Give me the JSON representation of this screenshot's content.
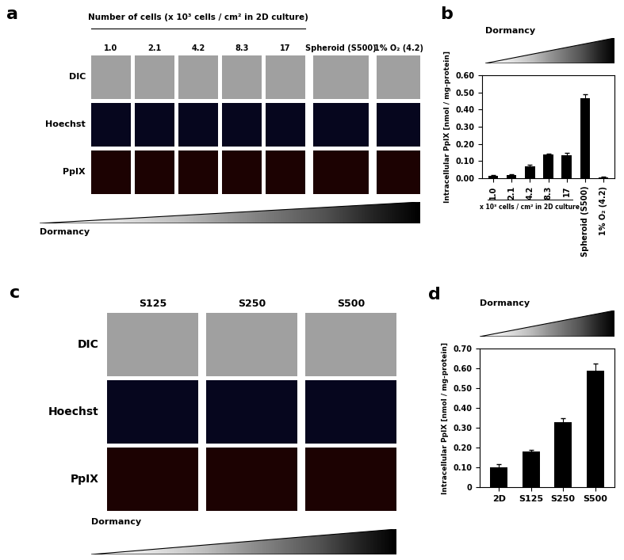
{
  "panels": [
    {
      "label": "a",
      "type": "image_grid",
      "header": "Number of cells (x 10³ cells / cm² in 2D culture)",
      "columns": [
        "1.0",
        "2.1",
        "4.2",
        "8.3",
        "17",
        "Spheroid (S500)",
        "1% O₂ (4.2)"
      ],
      "rows": [
        "DIC",
        "Hoechst",
        "PpIX"
      ],
      "gradient_label": "Dormancy"
    },
    {
      "label": "c",
      "type": "image_grid",
      "columns": [
        "S125",
        "S250",
        "S500"
      ],
      "rows": [
        "DIC",
        "Hoechst",
        "PpIX"
      ],
      "gradient_label": "Dormancy"
    }
  ],
  "chart_data": [
    {
      "type": "bar",
      "annotations": [
        "b",
        "Dormancy"
      ],
      "subtitle": "x 10³ cells / cm² in 2D culture",
      "y_label": "Intracellular PpIX [nmol / mg-protein]",
      "categories": [
        "1.0",
        "2.1",
        "4.2",
        "8.3",
        "17",
        "Spheroid (S500)",
        "1% O₂ (4.2)"
      ],
      "values": [
        0.015,
        0.02,
        0.07,
        0.14,
        0.135,
        0.465,
        0.005
      ],
      "errors": [
        0.005,
        0.005,
        0.008,
        0.005,
        0.015,
        0.025,
        0.002
      ],
      "color": "#000000",
      "ylim": [
        0,
        0.6
      ],
      "yticks": [
        {
          "value": 0,
          "label": "0.00"
        },
        {
          "value": 0.1,
          "label": "0.10"
        },
        {
          "value": 0.2,
          "label": "0.20"
        },
        {
          "value": 0.3,
          "label": "0.30"
        },
        {
          "value": 0.4,
          "label": "0.40"
        },
        {
          "value": 0.5,
          "label": "0.50"
        },
        {
          "value": 0.6,
          "label": "0.60"
        }
      ],
      "grid": false
    },
    {
      "type": "bar",
      "annotations": [
        "d",
        "Dormancy"
      ],
      "y_label": "Intracellular PpIX [nmol / mg-protein]",
      "categories": [
        "2D",
        "S125",
        "S250",
        "S500"
      ],
      "values": [
        0.1,
        0.18,
        0.33,
        0.59
      ],
      "errors": [
        0.015,
        0.01,
        0.02,
        0.035
      ],
      "color": "#000000",
      "ylim": [
        0,
        0.7
      ],
      "yticks": [
        0,
        {
          "value": 0.1,
          "label": "0.10"
        },
        {
          "value": 0.2,
          "label": "0.20"
        },
        {
          "value": 0.3,
          "label": "0.30"
        },
        {
          "value": 0.4,
          "label": "0.40"
        },
        {
          "value": 0.5,
          "label": "0.50"
        },
        {
          "value": 0.6,
          "label": "0.60"
        },
        {
          "value": 0.7,
          "label": "0.70"
        }
      ],
      "grid": false
    }
  ]
}
